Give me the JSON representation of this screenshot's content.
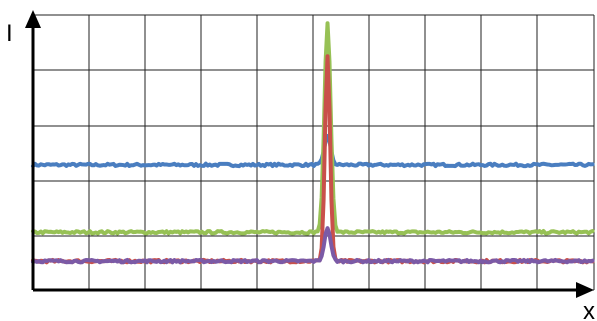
{
  "chart_data": {
    "type": "line",
    "xlabel": "x",
    "ylabel": "I",
    "grid": true,
    "legend": "none",
    "tick_labels": "none",
    "xlim": [
      0,
      100
    ],
    "ylim": [
      0,
      100
    ],
    "series": [
      {
        "color": "#4a7ec0",
        "baseline": 45.5,
        "peak_x": 52.5,
        "peak_y": 56,
        "width": 0.55
      },
      {
        "color": "#97c155",
        "baseline": 21,
        "peak_x": 52.5,
        "peak_y": 97,
        "width": 0.55
      },
      {
        "color": "#c9504a",
        "baseline": 10.5,
        "peak_x": 52.5,
        "peak_y": 85,
        "width": 0.45
      },
      {
        "color": "#7b5aa6",
        "baseline": 10.5,
        "peak_x": 52.5,
        "peak_y": 22.5,
        "width": 0.55
      }
    ]
  }
}
